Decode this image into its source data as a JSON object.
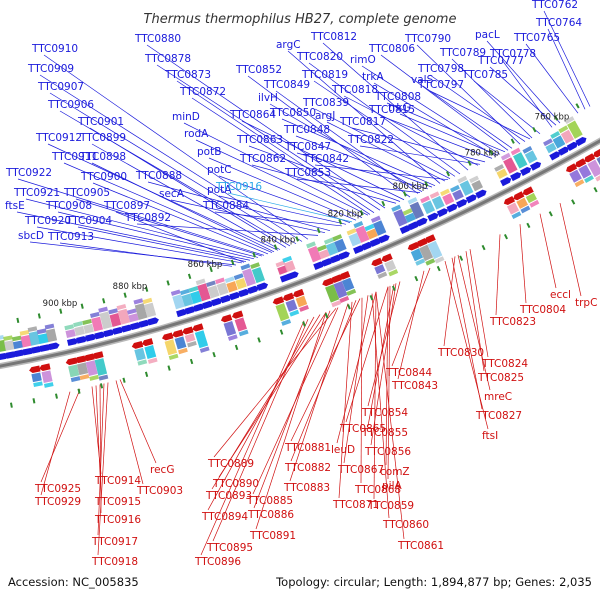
{
  "title": "Thermus thermophilus HB27, complete genome",
  "accession": "Accession: NC_005835",
  "summary": "Topology: circular; Length: 1,894,877 bp; Genes: 2,035",
  "colors": {
    "top_strand": "#1a1adb",
    "bottom_strand": "#d01010",
    "highlight": "#29a8e8",
    "backbone": "#777777"
  },
  "kbp_marks": [
    "900 kbp",
    "880 kbp",
    "860 kbp",
    "840 kbp",
    "820 kbp",
    "800 kbp",
    "780 kbp",
    "760 kbp"
  ],
  "top_labels": [
    "TTC0762",
    "TTC0764",
    "TTC0765",
    "pacL",
    "TTC0777",
    "TTC0778",
    "TTC0789",
    "TTC0785",
    "TTC0790",
    "TTC0798",
    "TTC0797",
    "TTC0806",
    "rimO",
    "TTC0808",
    "trkA",
    "TTC0815",
    "trkG",
    "valS",
    "TTC0817",
    "TTC0812",
    "TTC0820",
    "TTC0819",
    "TTC0818",
    "argC",
    "TTC0839",
    "TTC0822",
    "argJ",
    "TTC0850",
    "TTC0848",
    "TTC0847",
    "TTC0842",
    "ilvH",
    "TTC0849",
    "TTC0852",
    "TTC0864",
    "TTC0863",
    "TTC0862",
    "TTC0853",
    "TTC0880",
    "TTC0878",
    "TTC0873",
    "TTC0872",
    "minD",
    "rodA",
    "potB",
    "potC",
    "potA",
    "TTC0884",
    "TTC0888",
    "secA",
    "TTC0892",
    "TTC0910",
    "TTC0909",
    "TTC0907",
    "TTC0906",
    "TTC0901",
    "TTC0912",
    "TTC0899",
    "TTC0911",
    "TTC0898",
    "TTC0922",
    "TTC0900",
    "TTC0921",
    "TTC0905",
    "ftsE",
    "TTC0908",
    "TTC0897",
    "TTC0920",
    "TTC0904",
    "sbcD",
    "TTC0913",
    "TTC0916"
  ],
  "bottom_labels": [
    "eccl",
    "trpC",
    "TTC0804",
    "TTC0823",
    "TTC0830",
    "TTC0824",
    "TTC0825",
    "TTC0844",
    "TTC0843",
    "mreC",
    "TTC0827",
    "ftsI",
    "TTC0854",
    "TTC0865",
    "TTC0855",
    "leuD",
    "TTC0856",
    "TTC0881",
    "TTC0867",
    "comZ",
    "TTC0882",
    "TTC0868",
    "pilA",
    "TTC0889",
    "TTC0883",
    "TTC0871",
    "TTC0859",
    "TTC0890",
    "TTC0885",
    "TTC0860",
    "TTC0893",
    "TTC0886",
    "TTC0861",
    "TTC0894",
    "TTC0891",
    "TTC0895",
    "TTC0896",
    "TTC0925",
    "TTC0914",
    "recG",
    "TTC0929",
    "TTC0915",
    "TTC0903",
    "TTC0916",
    "TTC0917",
    "TTC0918"
  ],
  "chart_data": {
    "type": "circular-genome-map-segment",
    "range_kbp": [
      760,
      900
    ],
    "scale_ticks_kbp": [
      900,
      880,
      860,
      840,
      820,
      800,
      780,
      760
    ]
  }
}
